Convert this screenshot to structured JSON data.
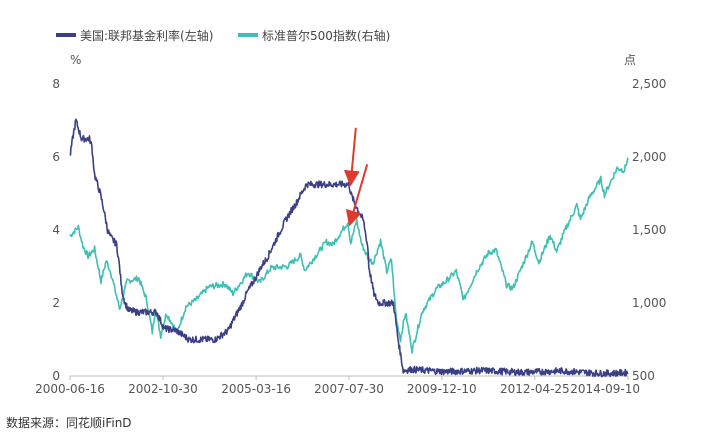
{
  "colors": {
    "fed": "#3b3f86",
    "sp500": "#3fbfb3",
    "arrow": "#e03a2f",
    "axis": "#bfbfbf"
  },
  "source": "数据来源：同花顺iFinD",
  "chart_data": {
    "type": "line",
    "legend_position": "top-left",
    "grid": false,
    "left_axis": {
      "unit": "%",
      "ylim": [
        0,
        8
      ],
      "ticks": [
        "0",
        "2",
        "4",
        "6",
        "8"
      ]
    },
    "right_axis": {
      "unit": "点",
      "ylim": [
        500,
        2500
      ],
      "ticks": [
        "500",
        "1,000",
        "1,500",
        "2,000",
        "2,500"
      ]
    },
    "xlim": [
      "2000-06-16",
      "2014-09-10"
    ],
    "x_ticks": [
      "2000-06-16",
      "2002-10-30",
      "2005-03-16",
      "2007-07-30",
      "2009-12-10",
      "2012-04-25",
      "2014-09-10"
    ],
    "series": [
      {
        "name": "美国:联邦基金利率(左轴)",
        "axis": "left",
        "points": [
          [
            "2000-06-16",
            6.0
          ],
          [
            "2000-07-10",
            6.5
          ],
          [
            "2000-08-10",
            7.0
          ],
          [
            "2000-10-01",
            6.5
          ],
          [
            "2000-12-15",
            6.5
          ],
          [
            "2001-01-05",
            6.3
          ],
          [
            "2001-02-01",
            5.5
          ],
          [
            "2001-03-25",
            5.0
          ],
          [
            "2001-05-01",
            4.5
          ],
          [
            "2001-06-01",
            4.0
          ],
          [
            "2001-07-01",
            3.8
          ],
          [
            "2001-08-25",
            3.6
          ],
          [
            "2001-09-20",
            3.0
          ],
          [
            "2001-10-10",
            2.4
          ],
          [
            "2001-11-10",
            2.0
          ],
          [
            "2001-12-15",
            1.8
          ],
          [
            "2002-03-01",
            1.75
          ],
          [
            "2002-06-01",
            1.75
          ],
          [
            "2002-09-01",
            1.75
          ],
          [
            "2002-11-10",
            1.3
          ],
          [
            "2003-03-01",
            1.25
          ],
          [
            "2003-06-30",
            1.0
          ],
          [
            "2003-12-01",
            1.0
          ],
          [
            "2004-03-01",
            1.0
          ],
          [
            "2004-06-30",
            1.25
          ],
          [
            "2004-08-10",
            1.5
          ],
          [
            "2004-09-25",
            1.75
          ],
          [
            "2004-11-10",
            2.0
          ],
          [
            "2004-12-15",
            2.25
          ],
          [
            "2005-02-02",
            2.5
          ],
          [
            "2005-03-22",
            2.75
          ],
          [
            "2005-05-03",
            3.0
          ],
          [
            "2005-06-30",
            3.25
          ],
          [
            "2005-08-09",
            3.5
          ],
          [
            "2005-09-20",
            3.75
          ],
          [
            "2005-11-01",
            4.0
          ],
          [
            "2005-12-13",
            4.25
          ],
          [
            "2006-01-31",
            4.5
          ],
          [
            "2006-03-28",
            4.75
          ],
          [
            "2006-05-10",
            5.0
          ],
          [
            "2006-06-29",
            5.25
          ],
          [
            "2007-01-01",
            5.25
          ],
          [
            "2007-07-30",
            5.25
          ],
          [
            "2007-08-15",
            5.0
          ],
          [
            "2007-09-18",
            4.75
          ],
          [
            "2007-10-31",
            4.5
          ],
          [
            "2007-12-11",
            4.25
          ],
          [
            "2008-01-22",
            3.5
          ],
          [
            "2008-01-30",
            3.0
          ],
          [
            "2008-03-18",
            2.25
          ],
          [
            "2008-04-30",
            2.0
          ],
          [
            "2008-09-15",
            2.0
          ],
          [
            "2008-10-08",
            1.5
          ],
          [
            "2008-10-29",
            1.0
          ],
          [
            "2008-12-16",
            0.15
          ],
          [
            "2009-03-01",
            0.18
          ],
          [
            "2010-01-01",
            0.12
          ],
          [
            "2011-01-01",
            0.15
          ],
          [
            "2012-01-01",
            0.1
          ],
          [
            "2013-01-01",
            0.14
          ],
          [
            "2014-01-01",
            0.07
          ],
          [
            "2014-09-10",
            0.09
          ]
        ]
      },
      {
        "name": "标准普尔500指数(右轴)",
        "axis": "right",
        "points": [
          [
            "2000-06-16",
            1460
          ],
          [
            "2000-09-01",
            1520
          ],
          [
            "2000-10-15",
            1390
          ],
          [
            "2000-12-01",
            1320
          ],
          [
            "2001-01-31",
            1370
          ],
          [
            "2001-04-01",
            1150
          ],
          [
            "2001-05-20",
            1290
          ],
          [
            "2001-07-01",
            1210
          ],
          [
            "2001-09-21",
            960
          ],
          [
            "2001-12-01",
            1150
          ],
          [
            "2002-03-19",
            1170
          ],
          [
            "2002-06-01",
            1020
          ],
          [
            "2002-07-23",
            800
          ],
          [
            "2002-08-22",
            960
          ],
          [
            "2002-10-09",
            777
          ],
          [
            "2002-12-01",
            930
          ],
          [
            "2003-03-11",
            800
          ],
          [
            "2003-06-01",
            975
          ],
          [
            "2003-09-01",
            1020
          ],
          [
            "2003-12-31",
            1110
          ],
          [
            "2004-06-01",
            1130
          ],
          [
            "2004-08-12",
            1065
          ],
          [
            "2004-12-31",
            1210
          ],
          [
            "2005-04-20",
            1140
          ],
          [
            "2005-08-01",
            1240
          ],
          [
            "2005-12-31",
            1250
          ],
          [
            "2006-05-05",
            1325
          ],
          [
            "2006-06-13",
            1225
          ],
          [
            "2006-12-31",
            1420
          ],
          [
            "2007-02-27",
            1400
          ],
          [
            "2007-07-19",
            1555
          ],
          [
            "2007-08-15",
            1410
          ],
          [
            "2007-10-09",
            1565
          ],
          [
            "2007-11-26",
            1400
          ],
          [
            "2008-01-22",
            1310
          ],
          [
            "2008-03-10",
            1275
          ],
          [
            "2008-05-19",
            1425
          ],
          [
            "2008-07-15",
            1215
          ],
          [
            "2008-08-28",
            1300
          ],
          [
            "2008-10-10",
            900
          ],
          [
            "2008-11-20",
            752
          ],
          [
            "2009-01-06",
            935
          ],
          [
            "2009-03-09",
            677
          ],
          [
            "2009-06-12",
            945
          ],
          [
            "2009-10-19",
            1095
          ],
          [
            "2010-01-19",
            1150
          ],
          [
            "2010-04-23",
            1217
          ],
          [
            "2010-07-02",
            1022
          ],
          [
            "2010-11-05",
            1225
          ],
          [
            "2011-02-18",
            1343
          ],
          [
            "2011-04-29",
            1364
          ],
          [
            "2011-08-08",
            1120
          ],
          [
            "2011-10-03",
            1099
          ],
          [
            "2011-12-31",
            1258
          ],
          [
            "2012-04-02",
            1419
          ],
          [
            "2012-06-01",
            1278
          ],
          [
            "2012-09-14",
            1465
          ],
          [
            "2012-11-15",
            1353
          ],
          [
            "2013-01-31",
            1498
          ],
          [
            "2013-05-21",
            1669
          ],
          [
            "2013-06-24",
            1573
          ],
          [
            "2013-09-18",
            1725
          ],
          [
            "2013-12-31",
            1848
          ],
          [
            "2014-02-03",
            1741
          ],
          [
            "2014-06-01",
            1924
          ],
          [
            "2014-08-07",
            1909
          ],
          [
            "2014-09-10",
            1995
          ]
        ]
      }
    ],
    "annotations": [
      {
        "type": "arrow",
        "from": [
          "2007-10-01",
          6.8
        ],
        "to": [
          "2007-08-15",
          5.3
        ]
      },
      {
        "type": "arrow",
        "from": [
          "2008-01-15",
          5.8
        ],
        "to": [
          "2007-08-10",
          4.2
        ]
      }
    ]
  }
}
